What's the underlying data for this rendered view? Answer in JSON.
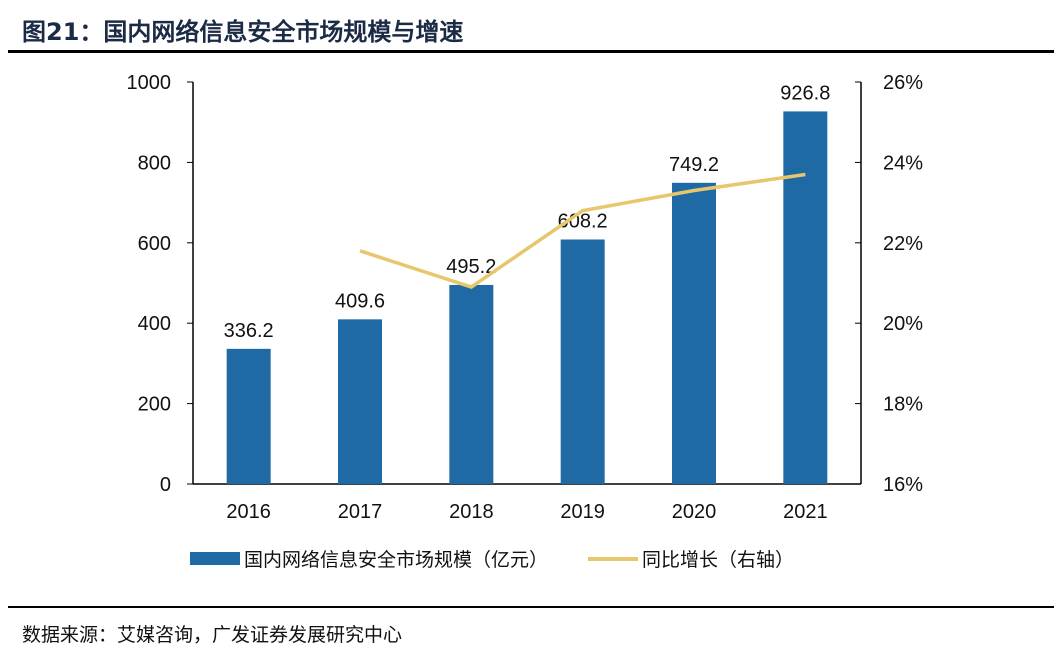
{
  "header": {
    "title": "图21：国内网络信息安全市场规模与增速"
  },
  "footer": {
    "source": "数据来源：艾媒咨询，广发证券发展研究中心"
  },
  "legend": {
    "bar_label": "国内网络信息安全市场规模（亿元）",
    "line_label": "同比增长（右轴）"
  },
  "chart_data": {
    "type": "bar",
    "title": "国内网络信息安全市场规模与增速",
    "categories": [
      "2016",
      "2017",
      "2018",
      "2019",
      "2020",
      "2021"
    ],
    "series": [
      {
        "name": "国内网络信息安全市场规模（亿元）",
        "type": "bar",
        "axis": "left",
        "color": "#1f6aa5",
        "values": [
          336.2,
          409.6,
          495.2,
          608.2,
          749.2,
          926.8
        ],
        "labels": [
          "336.2",
          "409.6",
          "495.2",
          "608.2",
          "749.2",
          "926.8"
        ]
      },
      {
        "name": "同比增长（右轴）",
        "type": "line",
        "axis": "right",
        "color": "#e6c76b",
        "values": [
          null,
          21.8,
          20.9,
          22.8,
          23.3,
          23.7
        ]
      }
    ],
    "ylim": [
      0,
      1000
    ],
    "yticks": [
      "0",
      "200",
      "400",
      "600",
      "800",
      "1000"
    ],
    "y2lim": [
      16,
      26
    ],
    "y2ticks": [
      "16%",
      "18%",
      "20%",
      "22%",
      "24%",
      "26%"
    ],
    "legend": "bottom",
    "grid": false
  }
}
